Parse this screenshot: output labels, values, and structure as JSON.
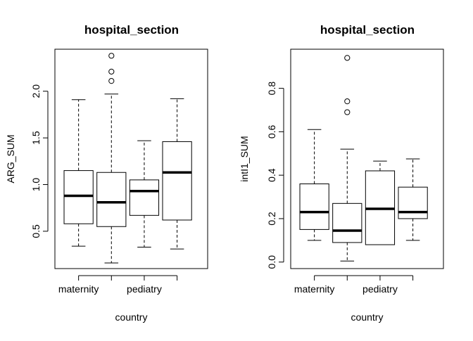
{
  "chart_data": [
    {
      "type": "boxplot",
      "title": "hospital_section",
      "xlabel": "country",
      "ylabel": "ARG_SUM",
      "categories": [
        "maternity",
        "",
        "pediatry",
        ""
      ],
      "ylim": [
        0.1,
        2.45
      ],
      "yticks": [
        "0.5",
        "1.0",
        "1.5",
        "2.0"
      ],
      "ytick_values": [
        0.5,
        1.0,
        1.5,
        2.0
      ],
      "boxes": [
        {
          "min": 0.34,
          "q1": 0.58,
          "median": 0.88,
          "q3": 1.15,
          "max": 1.91,
          "outliers": []
        },
        {
          "min": 0.16,
          "q1": 0.55,
          "median": 0.81,
          "q3": 1.13,
          "max": 1.97,
          "outliers": [
            2.11,
            2.21,
            2.38
          ]
        },
        {
          "min": 0.33,
          "q1": 0.67,
          "median": 0.93,
          "q3": 1.05,
          "max": 1.47,
          "outliers": []
        },
        {
          "min": 0.31,
          "q1": 0.62,
          "median": 1.13,
          "q3": 1.46,
          "max": 1.92,
          "outliers": []
        }
      ]
    },
    {
      "type": "boxplot",
      "title": "hospital_section",
      "xlabel": "country",
      "ylabel": "intI1_SUM",
      "categories": [
        "maternity",
        "",
        "pediatry",
        ""
      ],
      "ylim": [
        -0.03,
        0.98
      ],
      "yticks": [
        "0.0",
        "0.2",
        "0.4",
        "0.6",
        "0.8"
      ],
      "ytick_values": [
        0.0,
        0.2,
        0.4,
        0.6,
        0.8
      ],
      "boxes": [
        {
          "min": 0.1,
          "q1": 0.15,
          "median": 0.23,
          "q3": 0.36,
          "max": 0.61,
          "outliers": []
        },
        {
          "min": 0.005,
          "q1": 0.09,
          "median": 0.145,
          "q3": 0.27,
          "max": 0.52,
          "outliers": [
            0.69,
            0.74,
            0.94
          ]
        },
        {
          "min": 0.08,
          "q1": 0.08,
          "median": 0.245,
          "q3": 0.42,
          "max": 0.465,
          "outliers": []
        },
        {
          "min": 0.1,
          "q1": 0.2,
          "median": 0.23,
          "q3": 0.345,
          "max": 0.475,
          "outliers": []
        }
      ]
    }
  ]
}
